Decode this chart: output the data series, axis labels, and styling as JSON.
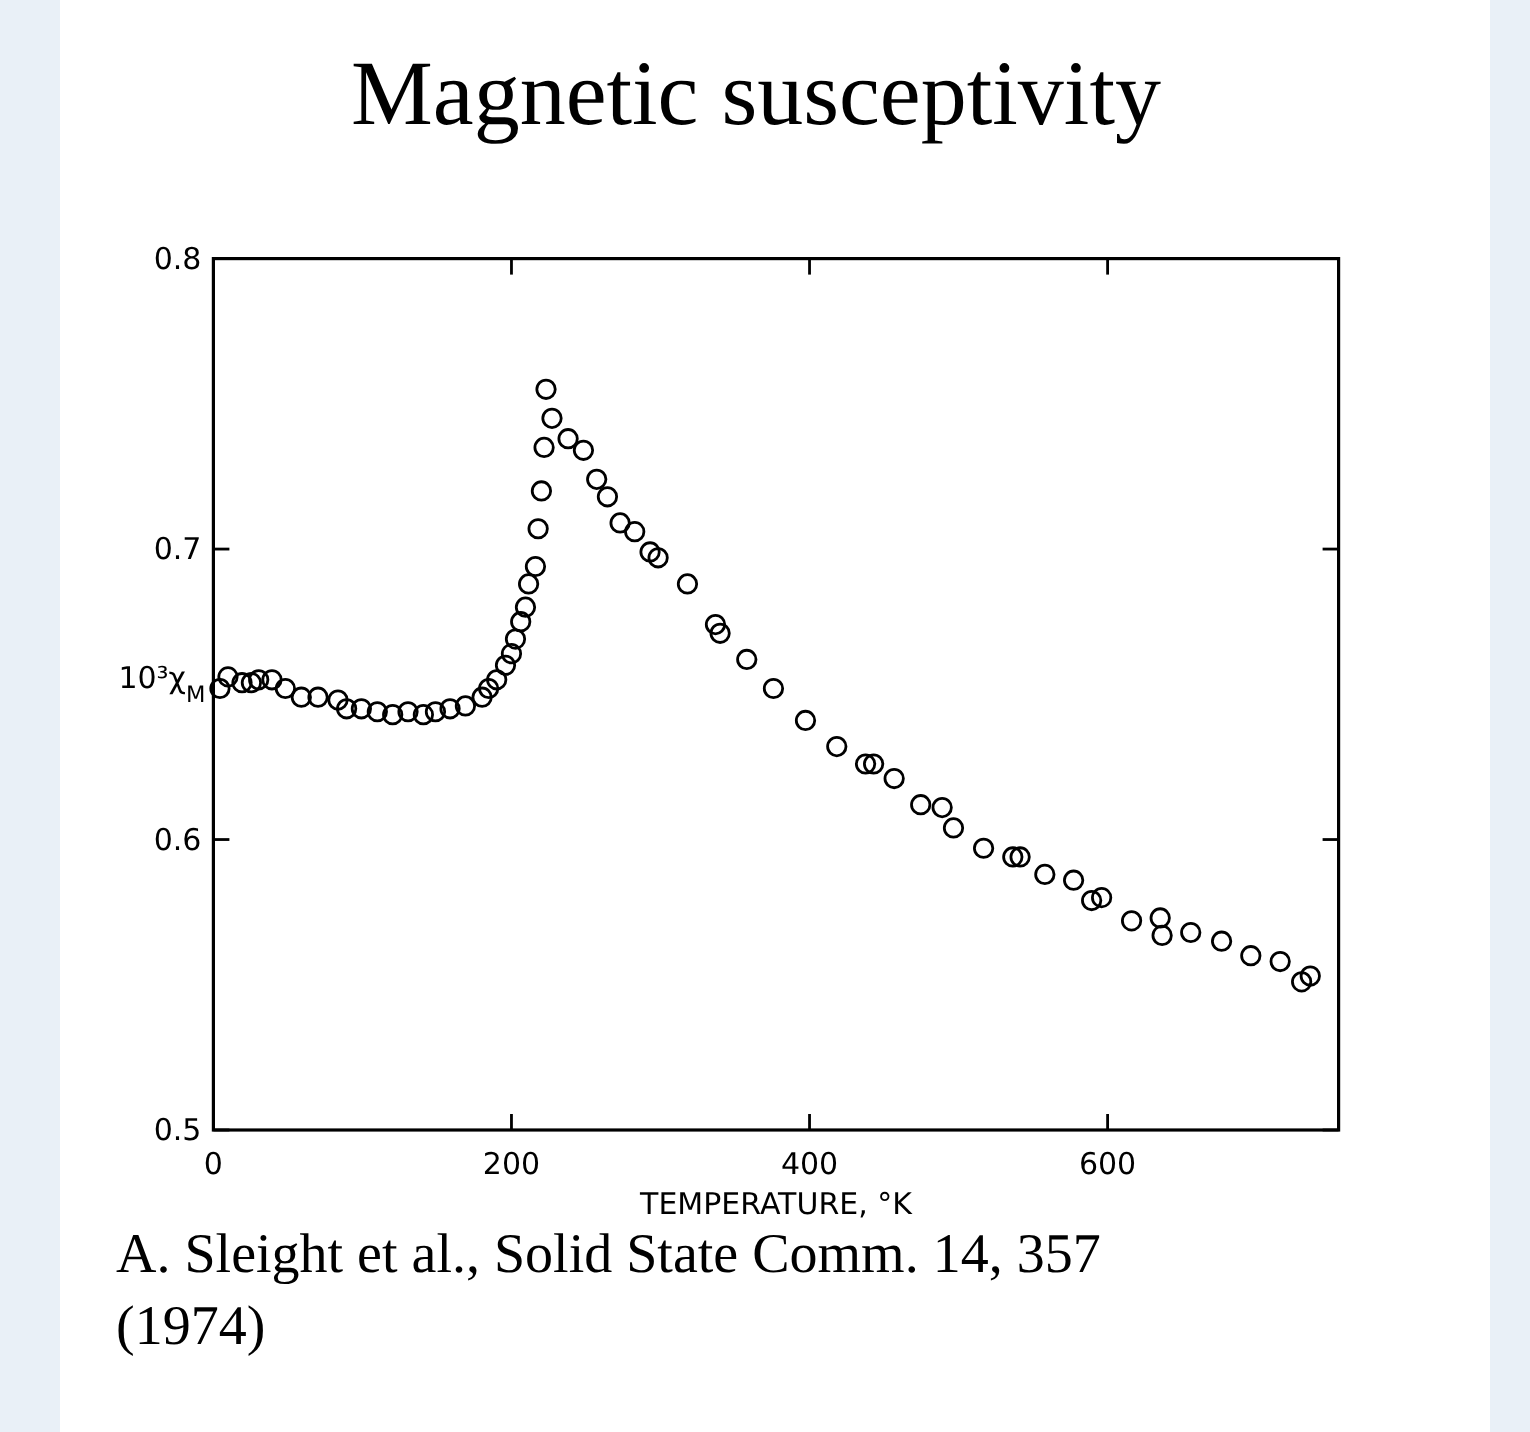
{
  "chart_data": {
    "type": "scatter",
    "title": "Magnetic susceptivity",
    "xlabel": "TEMPERATURE, °K",
    "ylabel": "10³χ$_{M}$",
    "xlim": [
      0,
      755
    ],
    "ylim": [
      0.5,
      0.8
    ],
    "xticks": [
      0,
      200,
      400,
      600
    ],
    "yticks": [
      0.5,
      0.6,
      0.7,
      0.8
    ],
    "grid": false,
    "marker": "circle",
    "annotations": [
      "A. Sleight et al., Solid State Comm. 14, 357 (1974)"
    ],
    "series": [
      {
        "color": "#000000",
        "x": [
          4.4,
          9.8,
          19.2,
          25.5,
          30.4,
          39.3,
          48.3,
          59,
          70.2,
          83.6,
          89.4,
          99.3,
          110,
          120.3,
          130.6,
          140.9,
          149,
          158.8,
          169.1,
          180.3,
          184.7,
          190.1,
          196,
          200,
          202.7,
          206.2,
          209.4,
          211.5,
          216.1,
          217.9,
          220.1,
          221.9,
          223.2,
          227.2,
          238,
          248.3,
          257.2,
          264.4,
          272.9,
          282.7,
          293,
          298.4,
          318.1,
          336.9,
          340,
          357.9,
          375.8,
          397.3,
          418.3,
          437.6,
          443,
          456.8,
          474.6,
          489,
          496.6,
          516.8,
          536.4,
          541.3,
          557.9,
          577.2,
          589.3,
          596,
          616.1,
          635.3,
          636.6,
          655.8,
          676.5,
          696.1,
          715.8,
          730.2,
          736
        ],
        "values": [
          0.652,
          0.656,
          0.654,
          0.654,
          0.655,
          0.655,
          0.652,
          0.649,
          0.649,
          0.648,
          0.645,
          0.645,
          0.644,
          0.643,
          0.644,
          0.643,
          0.644,
          0.645,
          0.646,
          0.649,
          0.652,
          0.655,
          0.66,
          0.664,
          0.669,
          0.675,
          0.68,
          0.688,
          0.694,
          0.707,
          0.72,
          0.735,
          0.755,
          0.745,
          0.738,
          0.734,
          0.724,
          0.718,
          0.709,
          0.706,
          0.699,
          0.697,
          0.688,
          0.674,
          0.671,
          0.662,
          0.652,
          0.641,
          0.632,
          0.626,
          0.626,
          0.621,
          0.612,
          0.611,
          0.604,
          0.597,
          0.594,
          0.594,
          0.588,
          0.586,
          0.579,
          0.58,
          0.572,
          0.573,
          0.567,
          0.568,
          0.565,
          0.56,
          0.558,
          0.551,
          0.553
        ]
      }
    ]
  }
}
